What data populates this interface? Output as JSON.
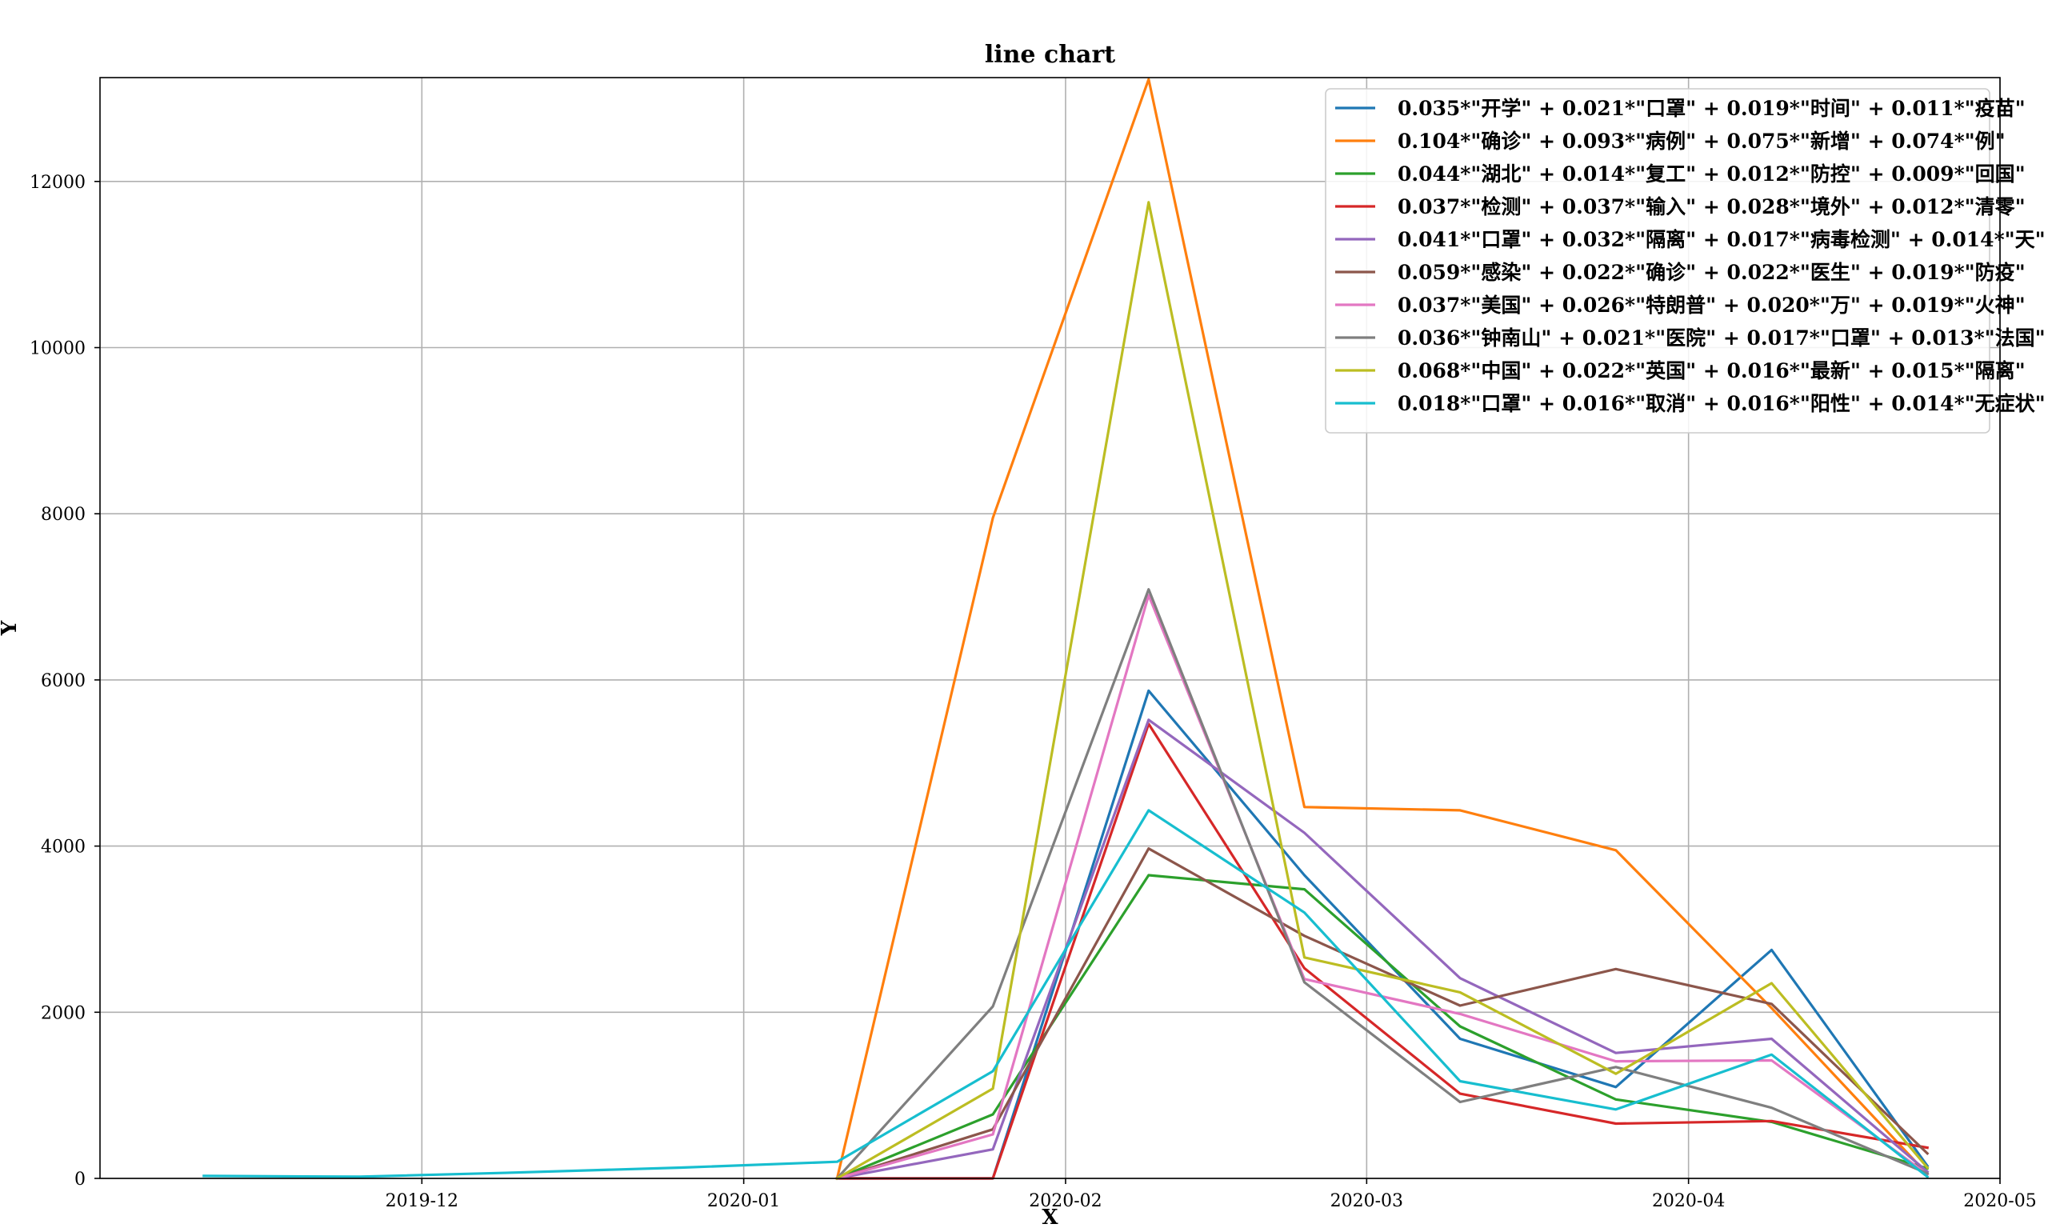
{
  "chart_data": {
    "type": "line",
    "title": "line chart",
    "xlabel": "X",
    "ylabel": "Y",
    "ylim": [
      0,
      13250
    ],
    "xlim": [
      "2019-10-31",
      "2020-05-01"
    ],
    "grid": true,
    "legend_position": "top-right",
    "x_ticks": [
      "2019-12",
      "2020-01",
      "2020-02",
      "2020-03",
      "2020-04",
      "2020-05"
    ],
    "y_ticks": [
      "0",
      "2000",
      "4000",
      "6000",
      "8000",
      "10000",
      "12000"
    ],
    "x": [
      "2019-11-10",
      "2019-11-25",
      "2019-12-10",
      "2019-12-26",
      "2020-01-10",
      "2020-01-25",
      "2020-02-09",
      "2020-02-24",
      "2020-03-10",
      "2020-03-25",
      "2020-04-09",
      "2020-04-24"
    ],
    "series": [
      {
        "name": "0.035*\"开学\" + 0.021*\"口罩\" + 0.019*\"时间\" + 0.011*\"疫苗\"",
        "color": "#1f77b4",
        "values": [
          null,
          null,
          null,
          null,
          0,
          0,
          5870,
          3650,
          1680,
          1100,
          2750,
          150
        ]
      },
      {
        "name": "0.104*\"确诊\" + 0.093*\"病例\" + 0.075*\"新增\" + 0.074*\"例\"",
        "color": "#ff7f0e",
        "values": [
          null,
          null,
          null,
          null,
          0,
          7950,
          13230,
          4470,
          4430,
          3950,
          2050,
          50
        ]
      },
      {
        "name": "0.044*\"湖北\" + 0.014*\"复工\" + 0.012*\"防控\" + 0.009*\"回国\"",
        "color": "#2ca02c",
        "values": [
          null,
          null,
          null,
          null,
          0,
          770,
          3650,
          3480,
          1830,
          950,
          680,
          120
        ]
      },
      {
        "name": "0.037*\"检测\" + 0.037*\"输入\" + 0.028*\"境外\" + 0.012*\"清零\"",
        "color": "#d62728",
        "values": [
          null,
          null,
          null,
          null,
          0,
          0,
          5470,
          2530,
          1020,
          660,
          690,
          370
        ]
      },
      {
        "name": "0.041*\"口罩\" + 0.032*\"隔离\" + 0.017*\"病毒检测\" + 0.014*\"天\"",
        "color": "#9467bd",
        "values": [
          null,
          null,
          null,
          null,
          0,
          350,
          5520,
          4160,
          2410,
          1510,
          1680,
          80
        ]
      },
      {
        "name": "0.059*\"感染\" + 0.022*\"确诊\" + 0.022*\"医生\" + 0.019*\"防疫\"",
        "color": "#8c564b",
        "values": [
          null,
          null,
          null,
          null,
          0,
          590,
          3970,
          2920,
          2080,
          2520,
          2100,
          300
        ]
      },
      {
        "name": "0.037*\"美国\" + 0.026*\"特朗普\" + 0.020*\"万\" + 0.019*\"火神\"",
        "color": "#e377c2",
        "values": [
          40,
          null,
          null,
          null,
          0,
          530,
          7020,
          2400,
          1980,
          1410,
          1420,
          50
        ]
      },
      {
        "name": "0.036*\"钟南山\" + 0.021*\"医院\" + 0.017*\"口罩\" + 0.013*\"法国\"",
        "color": "#7f7f7f",
        "values": [
          null,
          null,
          null,
          null,
          0,
          2070,
          7090,
          2360,
          920,
          1340,
          850,
          60
        ]
      },
      {
        "name": "0.068*\"中国\" + 0.022*\"英国\" + 0.016*\"最新\" + 0.015*\"隔离\"",
        "color": "#bcbd22",
        "values": [
          null,
          null,
          null,
          null,
          0,
          1080,
          11750,
          2660,
          2240,
          1260,
          2350,
          130
        ]
      },
      {
        "name": "0.018*\"口罩\" + 0.016*\"取消\" + 0.016*\"阳性\" + 0.014*\"无症状\"",
        "color": "#17becf",
        "values": [
          30,
          20,
          70,
          130,
          200,
          1290,
          4430,
          3200,
          1170,
          830,
          1490,
          20
        ]
      }
    ]
  }
}
